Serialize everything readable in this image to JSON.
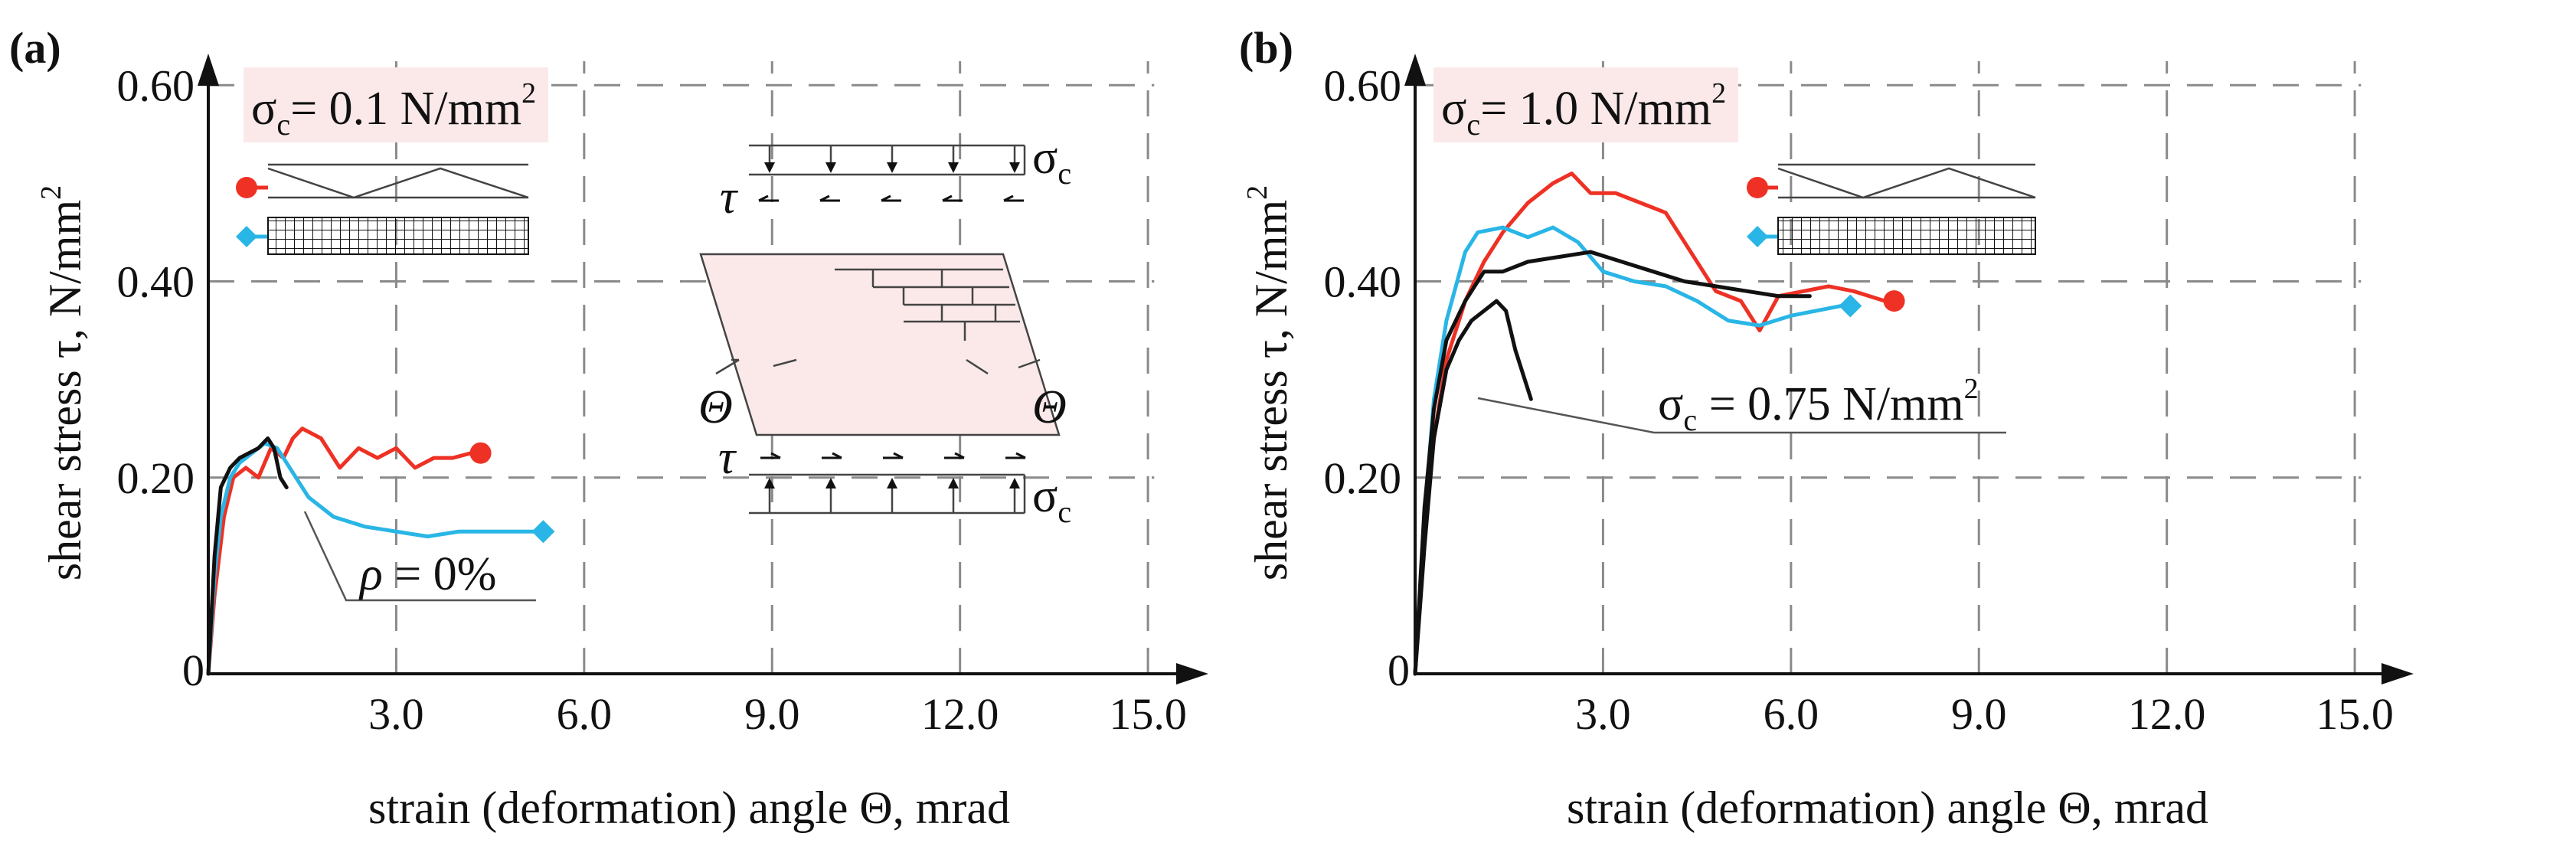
{
  "colors": {
    "red": "#ee3124",
    "blue": "#29b6e6",
    "black": "#111111",
    "box": "#fbe9ea"
  },
  "chart_data": [
    {
      "type": "line",
      "panel": "(a)",
      "title": "σc = 0.1 N/mm²",
      "title_main": "σ",
      "title_sub": "c",
      "title_rest": "= 0.1  N/mm",
      "title_sup": "2",
      "xlabel": "strain (deformation) angle Θ,  mrad",
      "ylabel_main": "shear stress τ,  N/mm",
      "ylabel_sup": "2",
      "xlim": [
        0,
        15.5
      ],
      "ylim": [
        0,
        0.64
      ],
      "xticks": [
        "3.0",
        "6.0",
        "9.0",
        "12.0",
        "15.0"
      ],
      "xtick_values": [
        3,
        6,
        9,
        12,
        15
      ],
      "yticks": [
        "0.20",
        "0.40",
        "0.60"
      ],
      "ytick_values": [
        0.2,
        0.4,
        0.6
      ],
      "origin_label": "0",
      "annotation": "ρ = 0%",
      "annotation_parts": [
        "ρ",
        " = 0%"
      ],
      "inset": {
        "sigma_top_main": "σ",
        "sigma_top_sub": "c",
        "sigma_bottom_main": "σ",
        "sigma_bottom_sub": "c",
        "tau_top": "τ",
        "tau_bottom": "τ",
        "theta_left": "Θ",
        "theta_right": "Θ"
      },
      "series": [
        {
          "name": "red",
          "color": "#ee3124",
          "x": [
            0,
            0.1,
            0.25,
            0.4,
            0.6,
            0.8,
            1.0,
            1.2,
            1.35,
            1.5,
            1.8,
            2.1,
            2.4,
            2.7,
            3.0,
            3.3,
            3.6,
            3.9,
            4.2
          ],
          "y": [
            0,
            0.08,
            0.16,
            0.2,
            0.21,
            0.2,
            0.23,
            0.22,
            0.24,
            0.25,
            0.24,
            0.21,
            0.23,
            0.22,
            0.23,
            0.21,
            0.22,
            0.22,
            0.225
          ],
          "end_marker": "circle"
        },
        {
          "name": "blue",
          "color": "#29b6e6",
          "x": [
            0,
            0.1,
            0.2,
            0.35,
            0.5,
            0.7,
            0.9,
            1.1,
            1.3,
            1.6,
            2.0,
            2.5,
            3.0,
            3.5,
            4.0,
            4.6,
            5.2
          ],
          "y": [
            0,
            0.1,
            0.16,
            0.2,
            0.215,
            0.225,
            0.235,
            0.23,
            0.21,
            0.18,
            0.16,
            0.15,
            0.145,
            0.14,
            0.145,
            0.145,
            0.145
          ],
          "end_marker": "diamond"
        },
        {
          "name": "black",
          "color": "#111111",
          "x": [
            0,
            0.1,
            0.2,
            0.35,
            0.5,
            0.65,
            0.8,
            0.95,
            1.05,
            1.15,
            1.25
          ],
          "y": [
            0,
            0.12,
            0.19,
            0.21,
            0.22,
            0.225,
            0.23,
            0.24,
            0.23,
            0.2,
            0.19
          ],
          "end_marker": "none"
        }
      ]
    },
    {
      "type": "line",
      "panel": "(b)",
      "title": "σc = 1.0 N/mm²",
      "title_main": "σ",
      "title_sub": "c",
      "title_rest": "= 1.0  N/mm",
      "title_sup": "2",
      "xlabel": "strain (deformation) angle Θ,  mrad",
      "ylabel_main": "shear stress τ,  N/mm",
      "ylabel_sup": "2",
      "xlim": [
        0,
        15.5
      ],
      "ylim": [
        0,
        0.64
      ],
      "xticks": [
        "3.0",
        "6.0",
        "9.0",
        "12.0",
        "15.0"
      ],
      "xtick_values": [
        3,
        6,
        9,
        12,
        15
      ],
      "yticks": [
        "0.20",
        "0.40",
        "0.60"
      ],
      "ytick_values": [
        0.2,
        0.4,
        0.6
      ],
      "origin_label": "0",
      "annotation": "σc = 0.75 N/mm²",
      "annotation_parts": [
        "σ",
        "c",
        " = 0.75 N/mm",
        "2"
      ],
      "series": [
        {
          "name": "red",
          "color": "#ee3124",
          "x": [
            0,
            0.15,
            0.3,
            0.5,
            0.8,
            1.1,
            1.4,
            1.8,
            2.2,
            2.5,
            2.8,
            3.2,
            3.6,
            4.0,
            4.4,
            4.8,
            5.2,
            5.5,
            5.8,
            6.2,
            6.6,
            7.0,
            7.5
          ],
          "y": [
            0,
            0.15,
            0.24,
            0.32,
            0.38,
            0.42,
            0.45,
            0.48,
            0.5,
            0.51,
            0.49,
            0.49,
            0.48,
            0.47,
            0.43,
            0.39,
            0.38,
            0.35,
            0.385,
            0.39,
            0.395,
            0.39,
            0.38
          ],
          "end_marker": "circle"
        },
        {
          "name": "blue",
          "color": "#29b6e6",
          "x": [
            0,
            0.15,
            0.3,
            0.5,
            0.8,
            1.0,
            1.4,
            1.8,
            2.2,
            2.6,
            3.0,
            3.5,
            4.0,
            4.5,
            5.0,
            5.5,
            6.0,
            6.4,
            6.8
          ],
          "y": [
            0,
            0.16,
            0.28,
            0.36,
            0.43,
            0.45,
            0.455,
            0.445,
            0.455,
            0.44,
            0.41,
            0.4,
            0.395,
            0.38,
            0.36,
            0.355,
            0.365,
            0.37,
            0.375
          ],
          "end_marker": "diamond"
        },
        {
          "name": "black-upper",
          "color": "#111111",
          "x": [
            0,
            0.15,
            0.3,
            0.5,
            0.8,
            1.1,
            1.4,
            1.8,
            2.3,
            2.8,
            3.3,
            3.8,
            4.3,
            4.8,
            5.3,
            5.8,
            6.3
          ],
          "y": [
            0,
            0.17,
            0.27,
            0.34,
            0.38,
            0.41,
            0.41,
            0.42,
            0.425,
            0.43,
            0.42,
            0.41,
            0.4,
            0.395,
            0.39,
            0.385,
            0.385
          ],
          "end_marker": "none"
        },
        {
          "name": "black-lower",
          "color": "#111111",
          "x": [
            0,
            0.15,
            0.3,
            0.5,
            0.7,
            0.9,
            1.1,
            1.3,
            1.45,
            1.6,
            1.75,
            1.85
          ],
          "y": [
            0,
            0.13,
            0.24,
            0.31,
            0.34,
            0.36,
            0.37,
            0.38,
            0.37,
            0.33,
            0.3,
            0.28
          ],
          "end_marker": "none"
        }
      ]
    }
  ]
}
